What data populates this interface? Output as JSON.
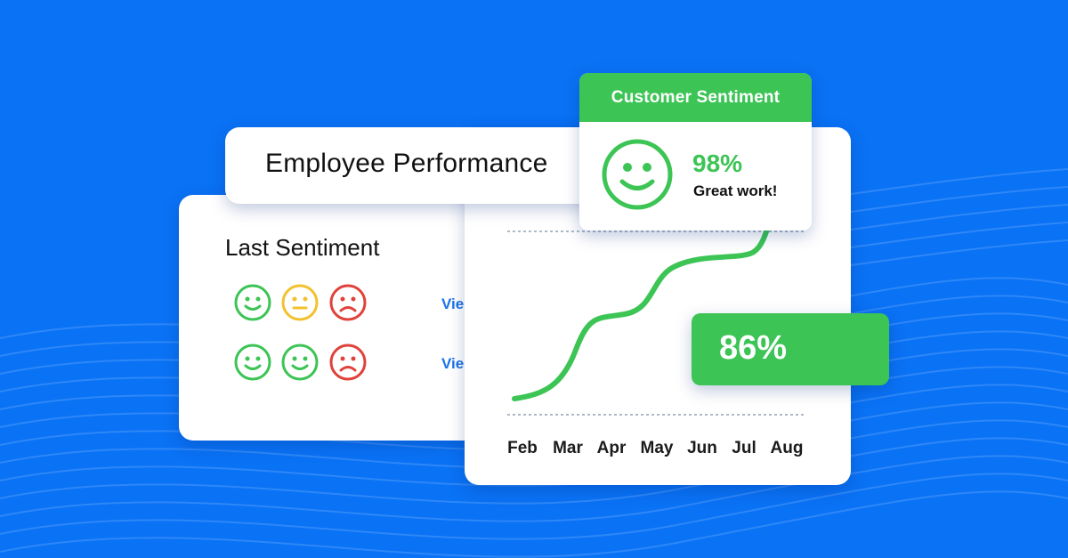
{
  "header": {
    "title": "Employee Performance"
  },
  "last_sentiment": {
    "title": "Last Sentiment",
    "rows": [
      {
        "faces": [
          "happy-face",
          "neutral-face",
          "sad-face"
        ],
        "link": "Vie"
      },
      {
        "faces": [
          "happy-face",
          "happy-face",
          "sad-face"
        ],
        "link": "Vie"
      }
    ]
  },
  "chart": {
    "months": [
      "Feb",
      "Mar",
      "Apr",
      "May",
      "Jun",
      "Jul",
      "Aug"
    ]
  },
  "customer_sentiment": {
    "title": "Customer Sentiment",
    "percent": "98%",
    "message": "Great work!"
  },
  "badge": {
    "value": "86%"
  },
  "colors": {
    "background": "#0a72f5",
    "green": "#3cc455",
    "yellow": "#f2c12e",
    "red": "#e0423a",
    "link": "#1a73e8"
  }
}
